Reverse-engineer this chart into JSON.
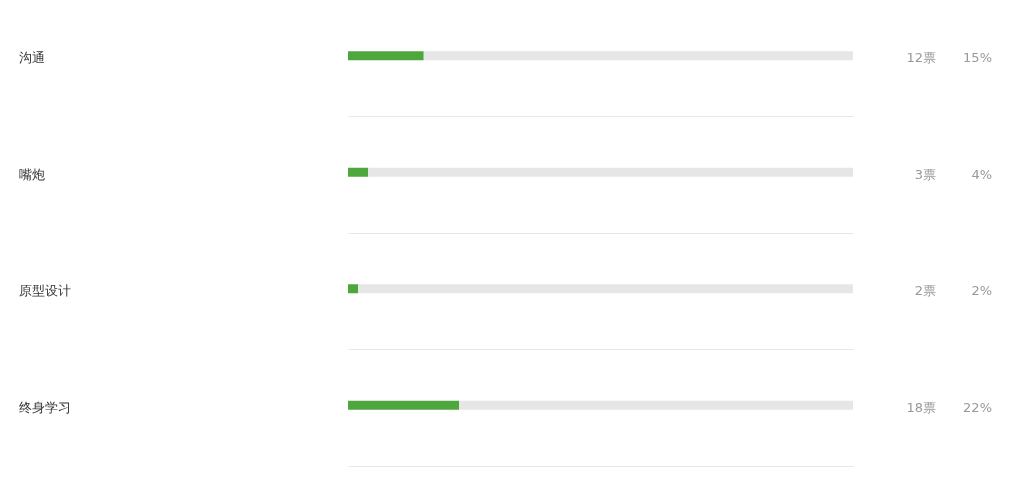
{
  "chart_data": {
    "type": "bar",
    "orientation": "horizontal",
    "stacked": true,
    "categories": [
      "沟通",
      "嘴炮",
      "原型设计",
      "终身学习"
    ],
    "series": [
      {
        "color": "#4ea73d",
        "values": [
          15,
          4,
          2,
          22
        ],
        "value_labels": [
          "15%",
          "4%",
          "2%",
          "22%"
        ]
      },
      {
        "color": "#e6e6e6",
        "values": [
          85,
          96,
          98,
          78
        ]
      }
    ],
    "xlim": [
      0,
      100
    ],
    "tick_labels": "y",
    "grid": "y",
    "annotations": [
      "12票",
      "3票",
      "2票",
      "18票"
    ]
  }
}
